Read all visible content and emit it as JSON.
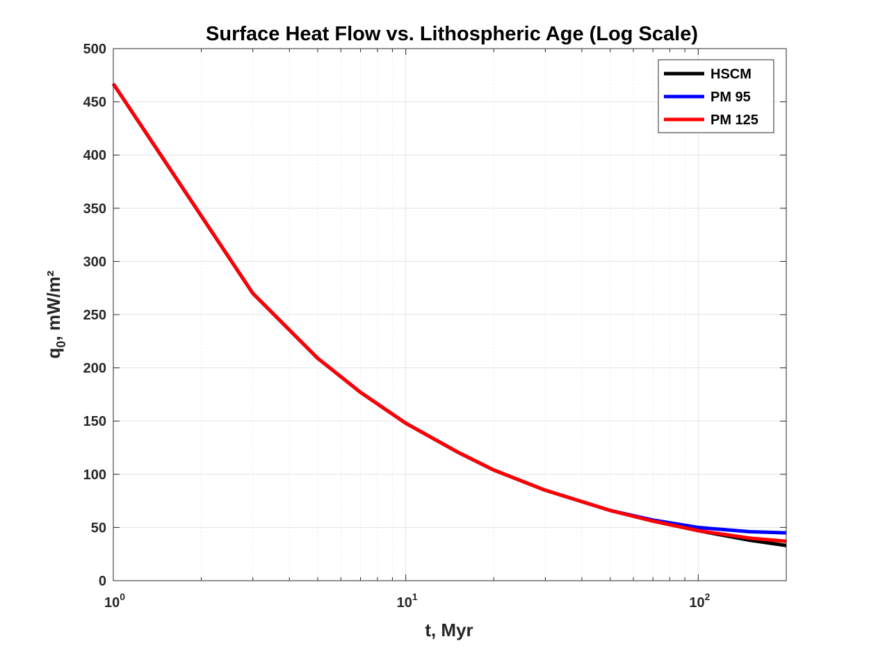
{
  "chart_data": {
    "type": "line",
    "title": "Surface Heat Flow vs. Lithospheric Age (Log Scale)",
    "xlabel": "t, Myr",
    "ylabel": "q",
    "ylabel_sub": "0",
    "ylabel_rest": ", mW/m²",
    "xscale": "log",
    "xlim": [
      1,
      200
    ],
    "ylim": [
      0,
      500
    ],
    "yticks": [
      0,
      50,
      100,
      150,
      200,
      250,
      300,
      350,
      400,
      450,
      500
    ],
    "ytick_labels": [
      "0",
      "50",
      "100",
      "150",
      "200",
      "250",
      "300",
      "350",
      "400",
      "450",
      "500"
    ],
    "xticks": [
      1,
      10,
      100
    ],
    "xtick_labels": [
      {
        "base": "10",
        "exp": "0"
      },
      {
        "base": "10",
        "exp": "1"
      },
      {
        "base": "10",
        "exp": "2"
      }
    ],
    "grid": true,
    "legend_position": "top-right",
    "series": [
      {
        "name": "HSCM",
        "color": "#000000",
        "x": [
          1,
          3,
          5,
          7,
          10,
          15,
          20,
          30,
          50,
          70,
          100,
          150,
          200
        ],
        "y": [
          467,
          270,
          209,
          177,
          148,
          121,
          104,
          85,
          66,
          56,
          47,
          38,
          33
        ]
      },
      {
        "name": "PM 95",
        "color": "#0000ff",
        "x": [
          1,
          3,
          5,
          7,
          10,
          15,
          20,
          30,
          50,
          70,
          100,
          150,
          200
        ],
        "y": [
          467,
          270,
          209,
          177,
          148,
          121,
          104,
          85,
          66,
          57,
          50,
          46,
          45
        ]
      },
      {
        "name": "PM 125",
        "color": "#ff0000",
        "x": [
          1,
          3,
          5,
          7,
          10,
          15,
          20,
          30,
          50,
          70,
          100,
          150,
          200
        ],
        "y": [
          467,
          270,
          209,
          177,
          148,
          121,
          104,
          85,
          66,
          56,
          47,
          40,
          37
        ]
      }
    ]
  }
}
